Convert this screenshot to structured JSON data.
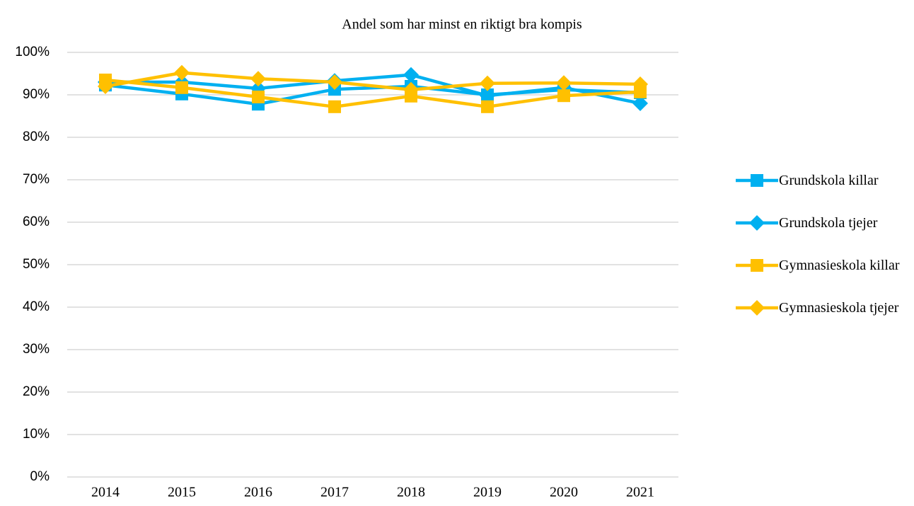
{
  "chart_data": {
    "type": "line",
    "title": "Andel som har minst en riktigt bra kompis",
    "categories": [
      "2014",
      "2015",
      "2016",
      "2017",
      "2018",
      "2019",
      "2020",
      "2021"
    ],
    "series": [
      {
        "name": "Grundskola killar",
        "color": "#00b0f0",
        "marker": "square",
        "values": [
          92.3,
          90.2,
          87.8,
          91.3,
          92,
          90,
          91.2,
          90.5
        ]
      },
      {
        "name": "Grundskola tjejer",
        "color": "#00b0f0",
        "marker": "diamond",
        "values": [
          93,
          93,
          91.5,
          93.3,
          94.7,
          89.8,
          91.7,
          88
        ]
      },
      {
        "name": "Gymnasieskola killar",
        "color": "#ffc000",
        "marker": "square",
        "values": [
          93.5,
          91.7,
          89.5,
          87.2,
          89.7,
          87.2,
          89.8,
          90.7
        ]
      },
      {
        "name": "Gymnasieskola tjejer",
        "color": "#ffc000",
        "marker": "diamond",
        "values": [
          92,
          95.2,
          93.8,
          93,
          91.2,
          92.7,
          92.8,
          92.5
        ]
      }
    ],
    "ylim": [
      0,
      100
    ],
    "yticks": [
      {
        "value": 0,
        "label": "0%"
      },
      {
        "value": 10,
        "label": "10%"
      },
      {
        "value": 20,
        "label": "20%"
      },
      {
        "value": 30,
        "label": "30%"
      },
      {
        "value": 40,
        "label": "40%"
      },
      {
        "value": 50,
        "label": "50%"
      },
      {
        "value": 60,
        "label": "60%"
      },
      {
        "value": 70,
        "label": "70%"
      },
      {
        "value": 80,
        "label": "80%"
      },
      {
        "value": 90,
        "label": "90%"
      },
      {
        "value": 100,
        "label": "100%"
      }
    ],
    "grid": true,
    "legend": "right"
  }
}
